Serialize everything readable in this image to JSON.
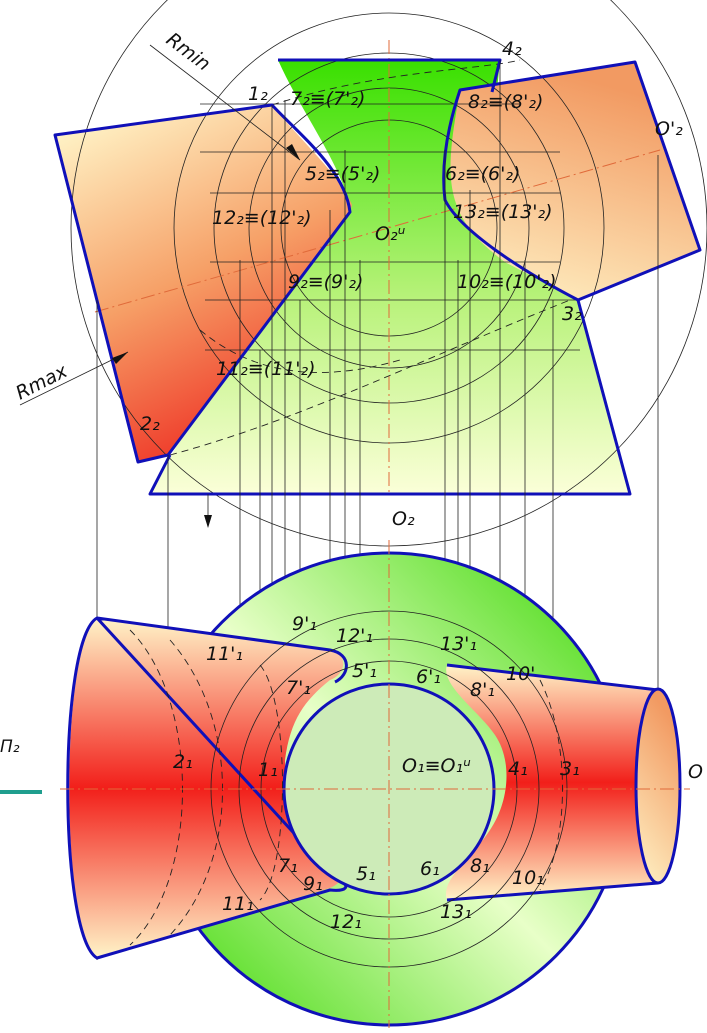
{
  "labels": {
    "rmin": "Rmin",
    "rmax": "Rmax",
    "p_1_2": "1₂",
    "p_4_2": "4₂",
    "p_7_2": "7₂≡(7'₂)",
    "p_8_2": "8₂≡(8'₂)",
    "p_o_2": "O'₂",
    "p_5_2": "5₂≡(5'₂)",
    "p_6_2": "6₂≡(6'₂)",
    "p_12_2": "12₂≡(12'₂)",
    "p_13_2": "13₂≡(13'₂)",
    "p_o_2_u": "O₂ᵘ",
    "p_9_2": "9₂≡(9'₂)",
    "p_10_2": "10₂≡(10'₂)",
    "p_3_2": "3₂",
    "p_11_2": "11₂≡(11'₂)",
    "p_2_2": "2₂",
    "p_O2": "O₂",
    "p_9p_1": "9'₁",
    "p_12p_1": "12'₁",
    "p_13p_1": "13'₁",
    "p_11p_1": "11'₁",
    "p_10p": "10'",
    "p_5p_1": "5'₁",
    "p_6p_1": "6'₁",
    "p_7p_1": "7'₁",
    "p_8p_1": "8'₁",
    "p_2_1": "2₁",
    "p_1_1": "1₁",
    "p_o1": "O₁≡O₁ᵘ",
    "p_4_1": "4₁",
    "p_3_1": "3₁",
    "p_o_right": "O",
    "p_pi2": "Π₂",
    "p_7_1": "7₁",
    "p_9_1": "9₁",
    "p_5_1": "5₁",
    "p_6_1": "6₁",
    "p_8_1": "8₁",
    "p_10_1": "10₁",
    "p_11_1": "11₁",
    "p_12_1": "12₁",
    "p_13_1": "13₁"
  },
  "colors": {
    "outline": "#1010b8",
    "green": "#39e000",
    "red": "#f03028",
    "cream": "#fff2c0",
    "axis": "#e06a3a",
    "toolbar_accent": "#1f9e8e"
  }
}
